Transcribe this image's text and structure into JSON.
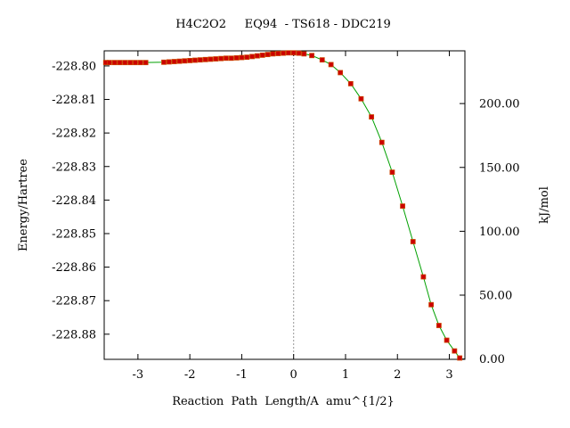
{
  "chart_data": {
    "type": "line",
    "title": "H4C2O2     EQ94  - TS618 - DDC219",
    "xlabel": "Reaction  Path  Length/A  amu^{1/2}",
    "ylabel_left": "Energy/Hartree",
    "ylabel_right": "kJ/mol",
    "xlim": [
      -3.65,
      3.3
    ],
    "ylim": [
      -228.8875,
      -228.7955
    ],
    "x_ticks": [
      -3,
      -2,
      -1,
      0,
      1,
      2,
      3
    ],
    "x_tick_labels": [
      "-3",
      "-2",
      "-1",
      "0",
      "1",
      "2",
      "3"
    ],
    "y_ticks": [
      -228.8,
      -228.81,
      -228.82,
      -228.83,
      -228.84,
      -228.85,
      -228.86,
      -228.87,
      -228.88
    ],
    "y_tick_labels": [
      "-228.80",
      "-228.81",
      "-228.82",
      "-228.83",
      "-228.84",
      "-228.85",
      "-228.86",
      "-228.87",
      "-228.88"
    ],
    "right_axis_zero_hartree": -228.8874,
    "hartree_to_kjmol": 2625.5,
    "right_ticks": [
      0,
      50,
      100,
      150,
      200
    ],
    "right_tick_labels": [
      "0.00",
      "50.00",
      "100.00",
      "150.00",
      "200.00"
    ],
    "ts_marker_x": 0,
    "grid": false,
    "series": [
      {
        "x": [
          -3.62,
          -3.55,
          -3.45,
          -3.35,
          -3.25,
          -3.15,
          -3.05,
          -2.95,
          -2.85,
          -2.5,
          -2.4,
          -2.3,
          -2.2,
          -2.1,
          -2.0,
          -1.9,
          -1.8,
          -1.7,
          -1.6,
          -1.5,
          -1.4,
          -1.3,
          -1.2,
          -1.1,
          -1.0,
          -0.9,
          -0.8,
          -0.7,
          -0.6,
          -0.5,
          -0.4,
          -0.3,
          -0.2,
          -0.1,
          0.0,
          0.1,
          0.2,
          0.35,
          0.55,
          0.72,
          0.9,
          1.1,
          1.3,
          1.5,
          1.7,
          1.9,
          2.1,
          2.3,
          2.5,
          2.65,
          2.8,
          2.95,
          3.1,
          3.2
        ],
        "y": [
          -228.799,
          -228.799,
          -228.799,
          -228.799,
          -228.799,
          -228.799,
          -228.799,
          -228.799,
          -228.799,
          -228.7989,
          -228.7988,
          -228.7987,
          -228.7986,
          -228.7985,
          -228.7984,
          -228.7983,
          -228.7982,
          -228.7981,
          -228.798,
          -228.7979,
          -228.7978,
          -228.7977,
          -228.7977,
          -228.7976,
          -228.7975,
          -228.7974,
          -228.7972,
          -228.797,
          -228.7968,
          -228.7966,
          -228.7964,
          -228.7963,
          -228.7962,
          -228.7961,
          -228.7961,
          -228.7962,
          -228.7964,
          -228.7969,
          -228.7982,
          -228.7996,
          -228.802,
          -228.8053,
          -228.8098,
          -228.8152,
          -228.8228,
          -228.8317,
          -228.8418,
          -228.8524,
          -228.8629,
          -228.8712,
          -228.8774,
          -228.8818,
          -228.885,
          -228.8871
        ]
      }
    ],
    "colors": {
      "line": "#00a000",
      "marker_fill": "#cc0000",
      "marker_edge": "#cc4400",
      "ts_marker": "#999999",
      "axes": "#000000"
    }
  }
}
